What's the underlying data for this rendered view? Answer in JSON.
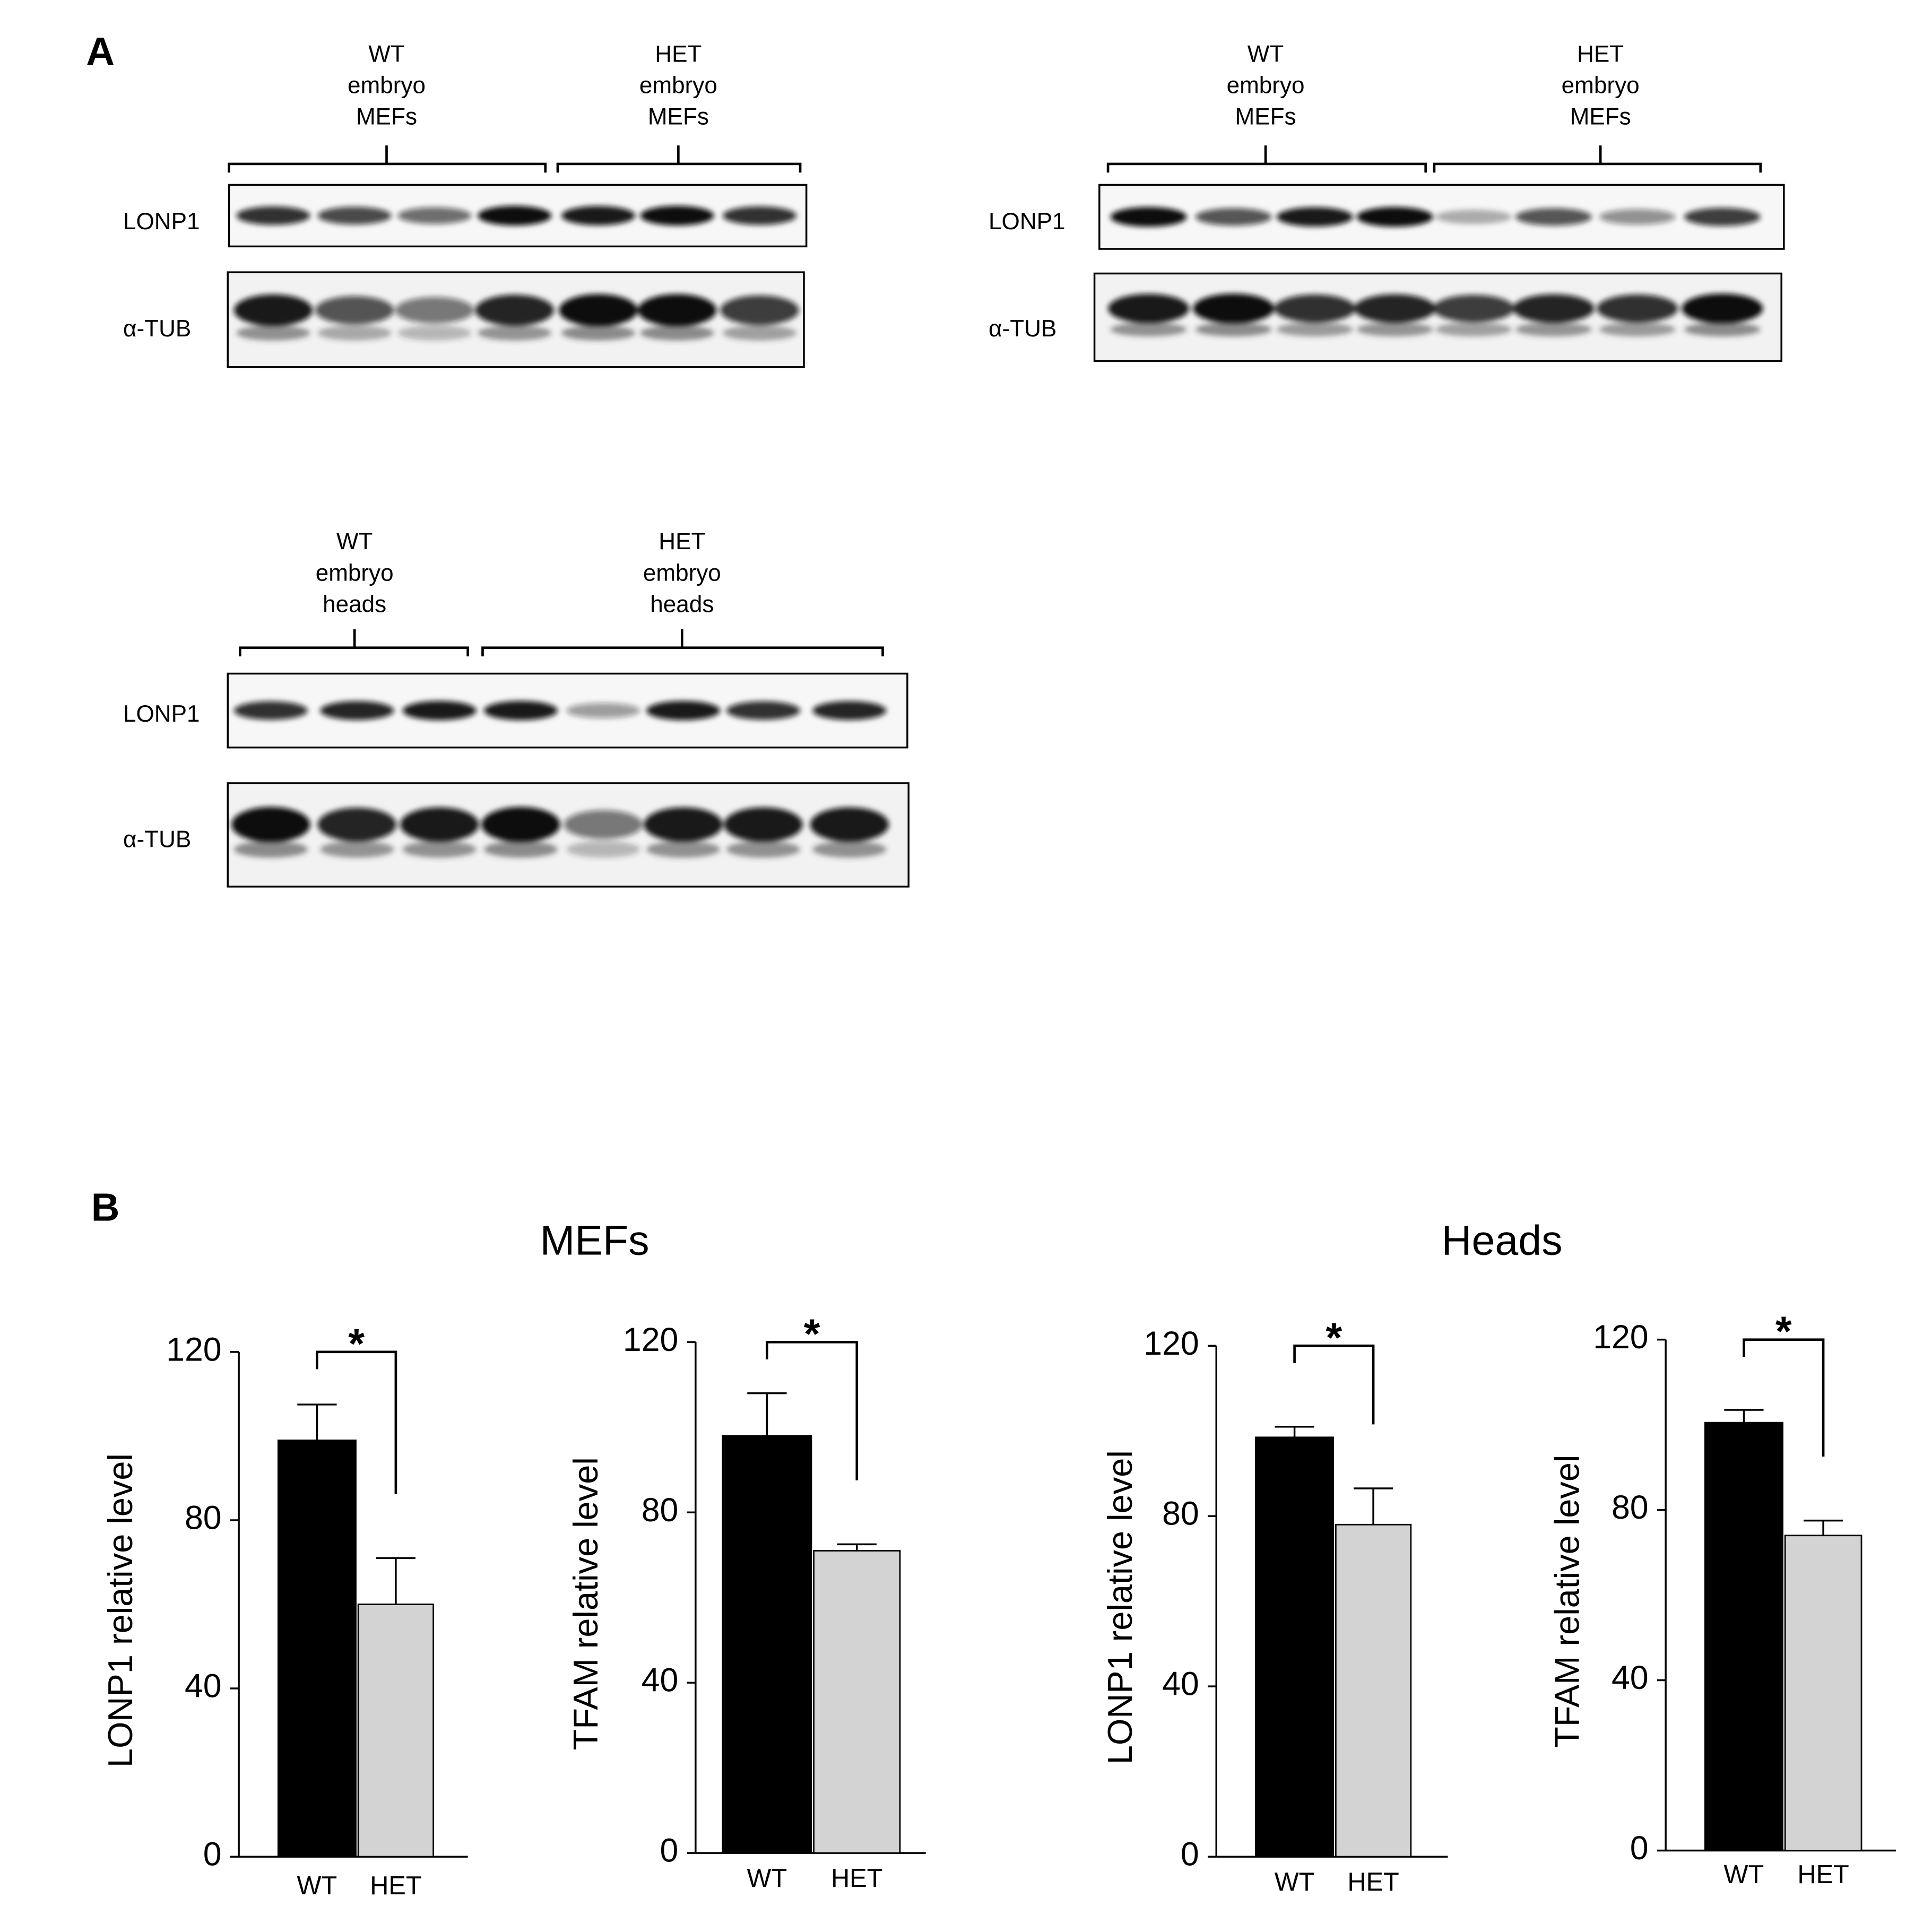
{
  "panel_a": {
    "label": "A",
    "blots": [
      {
        "groups": [
          [
            "WT",
            "embryo",
            "MEFs"
          ],
          [
            "HET",
            "embryo",
            "MEFs"
          ]
        ],
        "rows": [
          "LONP1",
          "α-TUB"
        ]
      },
      {
        "groups": [
          [
            "WT",
            "embryo",
            "MEFs"
          ],
          [
            "HET",
            "embryo",
            "MEFs"
          ]
        ],
        "rows": [
          "LONP1",
          "α-TUB"
        ]
      },
      {
        "groups": [
          [
            "WT",
            "embryo",
            "heads"
          ],
          [
            "HET",
            "embryo",
            "heads"
          ]
        ],
        "rows": [
          "LONP1",
          "α-TUB"
        ]
      }
    ]
  },
  "panel_b": {
    "label": "B",
    "titles": [
      "MEFs",
      "Heads"
    ]
  },
  "chart_data": [
    {
      "type": "bar",
      "ylabel": "LONP1 relative level",
      "categories": [
        "WT",
        "HET"
      ],
      "values": [
        99,
        60
      ],
      "errors": [
        8.5,
        11
      ],
      "colors": [
        "#000000",
        "#d3d3d3"
      ],
      "ylim": [
        0,
        120
      ],
      "yticks": [
        0,
        40,
        80,
        120
      ],
      "annotation": "*"
    },
    {
      "type": "bar",
      "ylabel": "TFAM relative level",
      "categories": [
        "WT",
        "HET"
      ],
      "values": [
        98,
        71
      ],
      "errors": [
        10,
        1.5
      ],
      "colors": [
        "#000000",
        "#d3d3d3"
      ],
      "ylim": [
        0,
        120
      ],
      "yticks": [
        0,
        40,
        80,
        120
      ],
      "annotation": "*"
    },
    {
      "type": "bar",
      "ylabel": "LONP1 relative level",
      "categories": [
        "WT",
        "HET"
      ],
      "values": [
        98.5,
        78
      ],
      "errors": [
        2.5,
        8.5
      ],
      "colors": [
        "#000000",
        "#d3d3d3"
      ],
      "ylim": [
        0,
        120
      ],
      "yticks": [
        0,
        40,
        80,
        120
      ],
      "annotation": "*"
    },
    {
      "type": "bar",
      "ylabel": "TFAM relative level",
      "categories": [
        "WT",
        "HET"
      ],
      "values": [
        100.5,
        74
      ],
      "errors": [
        3,
        3.5
      ],
      "colors": [
        "#000000",
        "#d3d3d3"
      ],
      "ylim": [
        0,
        120
      ],
      "yticks": [
        0,
        40,
        80,
        120
      ],
      "annotation": "*"
    }
  ]
}
